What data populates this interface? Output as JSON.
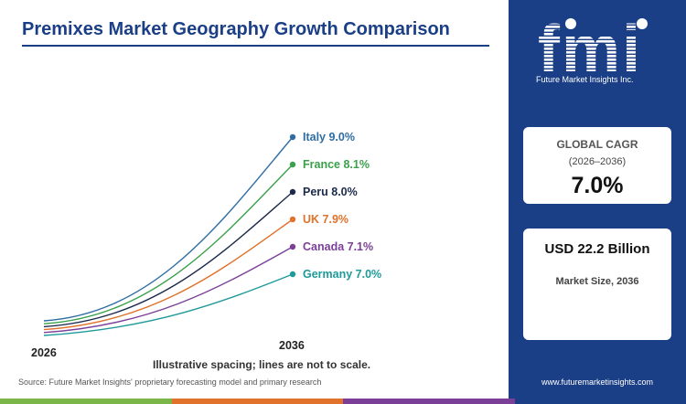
{
  "title": "Premixes Market Geography Growth Comparison",
  "note": "Illustrative spacing; lines are not to scale.",
  "source": "Source: Future Market Insights' proprietary forecasting model and primary research",
  "brand": {
    "logo_letters": "fmi",
    "logo_text": "Future Market Insights Inc.",
    "website": "www.futuremarketinsights.com",
    "color": "#1b3f86"
  },
  "cagr_card": {
    "title": "GLOBAL CAGR",
    "period": "(2026–2036)",
    "value": "7.0%"
  },
  "size_card": {
    "value": "USD 22.2 Billion",
    "label": "Market Size, 2036"
  },
  "bottom_bar_colors": [
    "#7ab648",
    "#e0722b",
    "#7b3f97",
    "#1b3f86"
  ],
  "chart_data": {
    "type": "line",
    "x": [
      "2026",
      "2036"
    ],
    "xlabel": "",
    "ylabel": "",
    "series": [
      {
        "name": "Italy",
        "cagr": 9.0,
        "label": "Italy 9.0%",
        "color": "#2e6da4"
      },
      {
        "name": "France",
        "cagr": 8.1,
        "label": "France 8.1%",
        "color": "#3aa04a"
      },
      {
        "name": "Peru",
        "cagr": 8.0,
        "label": "Peru 8.0%",
        "color": "#1b2a4a"
      },
      {
        "name": "UK",
        "cagr": 7.9,
        "label": "UK 7.9%",
        "color": "#e0722b"
      },
      {
        "name": "Canada",
        "cagr": 7.1,
        "label": "Canada 7.1%",
        "color": "#7b3f97"
      },
      {
        "name": "Germany",
        "cagr": 7.0,
        "label": "Germany 7.0%",
        "color": "#1f9a9a"
      }
    ]
  }
}
